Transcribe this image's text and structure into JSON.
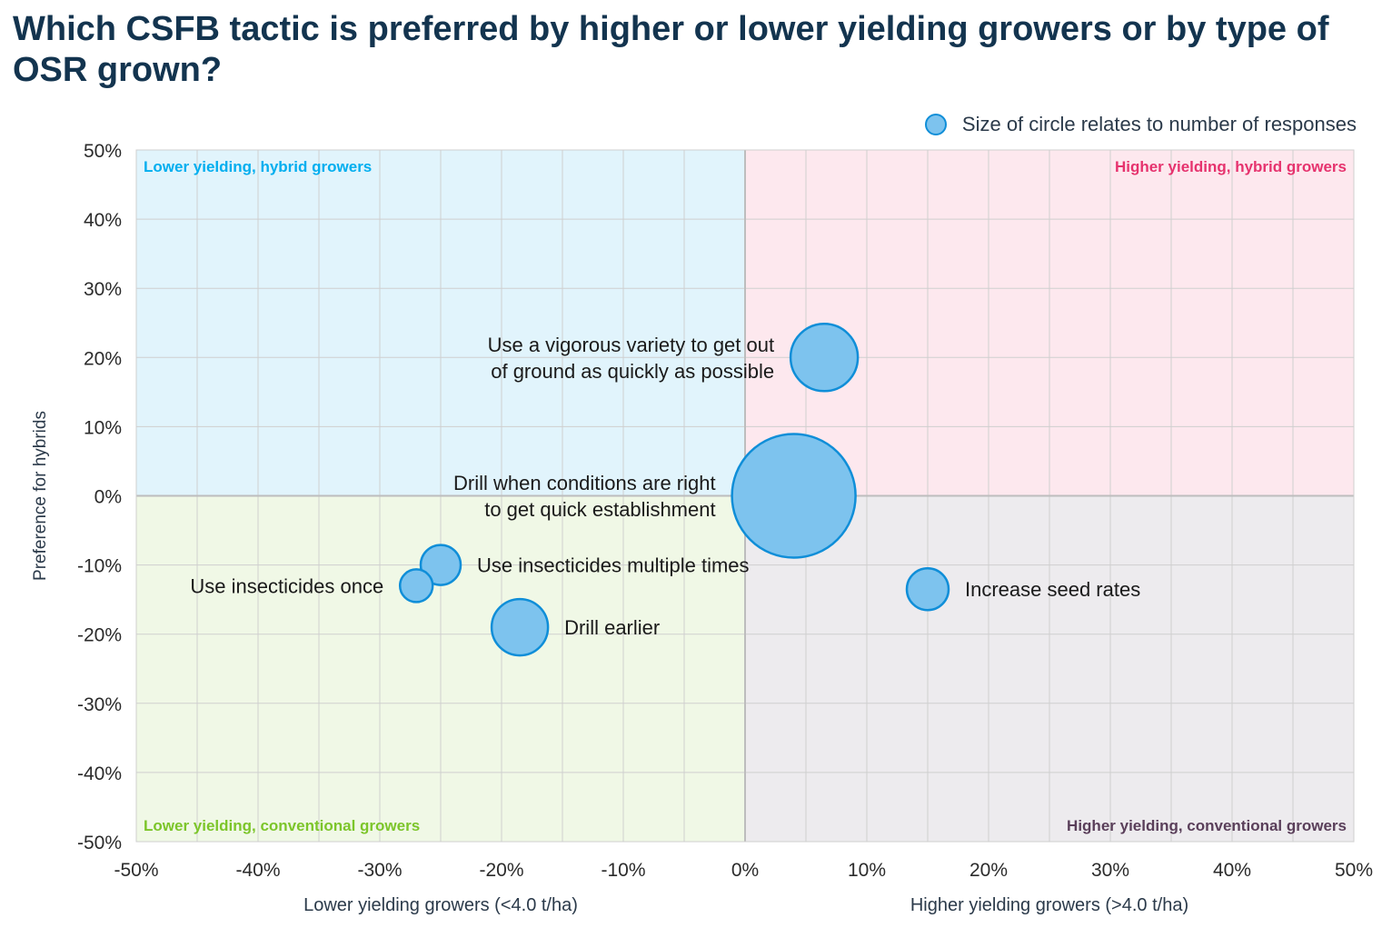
{
  "title": "Which CSFB tactic is preferred by higher or lower yielding growers or by type of OSR grown?",
  "legend_note": "Size of circle relates to number of responses",
  "colors": {
    "title": "#13344f",
    "bubble_fill": "#7dc3ee",
    "bubble_stroke": "#0f8ed8",
    "quadrant_top_left": "#e1f4fc",
    "quadrant_top_right": "#fde8ee",
    "quadrant_bottom_left": "#f0f8e6",
    "quadrant_bottom_right": "#edebee",
    "label_top_left": "#00aeef",
    "label_top_right": "#e6336e",
    "label_bottom_left": "#7cc52a",
    "label_bottom_right": "#5a3f5a"
  },
  "chart_data": {
    "type": "scatter",
    "subtype": "bubble",
    "xlim": [
      -50,
      50
    ],
    "ylim": [
      -50,
      50
    ],
    "x_ticks": [
      "-50%",
      "-40%",
      "-30%",
      "-20%",
      "-10%",
      "0%",
      "10%",
      "20%",
      "30%",
      "40%",
      "50%"
    ],
    "y_ticks": [
      "50%",
      "40%",
      "30%",
      "20%",
      "10%",
      "0%",
      "-10%",
      "-20%",
      "-30%",
      "-40%",
      "-50%"
    ],
    "xlabel_left": "Lower yielding growers (<4.0 t/ha)",
    "xlabel_right": "Higher yielding growers (>4.0 t/ha)",
    "ylabel": "Preference for hybrids",
    "grid": true,
    "quadrant_labels": {
      "top_left": "Lower yielding, hybrid growers",
      "top_right": "Higher yielding, hybrid growers",
      "bottom_left": "Lower yielding, conventional growers",
      "bottom_right": "Higher yielding, conventional growers"
    },
    "points": [
      {
        "label": "Use a vigorous variety to get out|of ground as quickly as possible",
        "x": 6.5,
        "y": 20,
        "size": 37
      },
      {
        "label": "Drill when conditions are right|to get quick establishment",
        "x": 4,
        "y": 0,
        "size": 68
      },
      {
        "label": "Use insecticides multiple times",
        "x": -25,
        "y": -10,
        "size": 22
      },
      {
        "label": "Use insecticides once",
        "x": -27,
        "y": -13,
        "size": 18
      },
      {
        "label": "Drill earlier",
        "x": -18.5,
        "y": -19,
        "size": 31
      },
      {
        "label": "Increase seed rates",
        "x": 15,
        "y": -13.5,
        "size": 23
      }
    ]
  }
}
